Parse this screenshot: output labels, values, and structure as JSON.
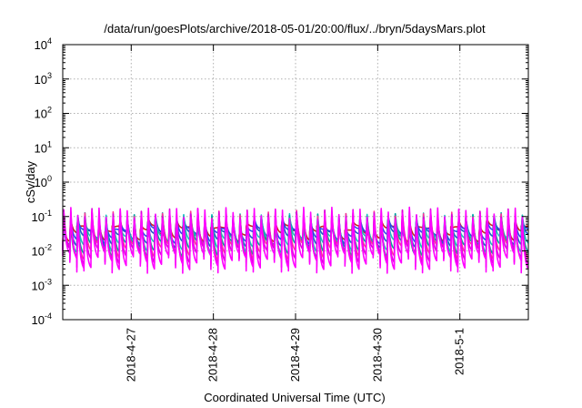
{
  "chart_data": {
    "type": "line",
    "title": "/data/run/goesPlots/archive/2018-05-01/20:00/flux/../bryn/5daysMars.plot",
    "xlabel": "Coordinated Universal Time (UTC)",
    "ylabel": "cSv/day",
    "yscale": "log",
    "ylim": [
      0.0001,
      10000
    ],
    "xlim": [
      "2018-04-26 04:00",
      "2018-05-01 20:00"
    ],
    "grid": true,
    "y_ticks": [
      {
        "base": "10",
        "exp": "-4"
      },
      {
        "base": "10",
        "exp": "-3"
      },
      {
        "base": "10",
        "exp": "-2"
      },
      {
        "base": "10",
        "exp": "-1"
      },
      {
        "base": "10",
        "exp": "0"
      },
      {
        "base": "10",
        "exp": "1"
      },
      {
        "base": "10",
        "exp": "2"
      },
      {
        "base": "10",
        "exp": "3"
      },
      {
        "base": "10",
        "exp": "4"
      }
    ],
    "x_ticks": [
      {
        "label": "2018-4-27",
        "date": "2018-04-27 00:00"
      },
      {
        "label": "2018-4-28",
        "date": "2018-04-28 00:00"
      },
      {
        "label": "2018-4-29",
        "date": "2018-04-29 00:00"
      },
      {
        "label": "2018-4-30",
        "date": "2018-04-30 00:00"
      },
      {
        "label": "2018-5-1",
        "date": "2018-05-01 00:00"
      }
    ],
    "series_colors": [
      "#ff00ff",
      "#dd00dd",
      "#ff3399",
      "#00a0a0",
      "#20c0c0",
      "#2255cc",
      "#3344ee",
      "#cc2222"
    ],
    "oscillation": {
      "cycles": 66,
      "peak_values": [
        0.16,
        0.14,
        0.12,
        0.1,
        0.09,
        0.08,
        0.07,
        0.06
      ],
      "trough_values": [
        0.004,
        0.006,
        0.008,
        0.01,
        0.014,
        0.02,
        0.025,
        0.03
      ]
    }
  }
}
